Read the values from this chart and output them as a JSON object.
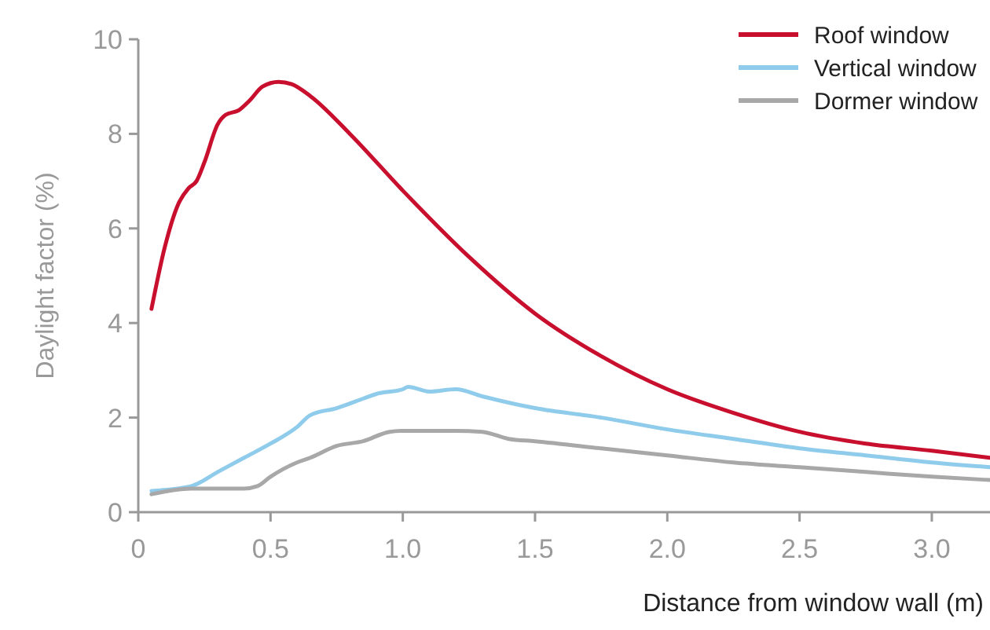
{
  "chart_data": {
    "type": "line",
    "xlabel": "Distance from window wall (m)",
    "ylabel": "Daylight factor (%)",
    "xlim": [
      0,
      3.22
    ],
    "ylim": [
      0,
      10
    ],
    "xticks": [
      0,
      0.5,
      {
        "value": 1,
        "label": "1.0"
      },
      1.5,
      {
        "value": 2,
        "label": "2.0"
      },
      2.5,
      {
        "value": 3,
        "label": "3.0"
      }
    ],
    "yticks": [
      0,
      2,
      4,
      6,
      8,
      10
    ],
    "grid": false,
    "legend": "top right",
    "marker": "none",
    "line_style": "solid",
    "series": [
      {
        "name": "Roof window",
        "color": "#c8102e",
        "x": [
          0.05,
          0.1,
          0.15,
          0.19,
          0.22,
          0.25,
          0.3,
          0.33,
          0.38,
          0.42,
          0.47,
          0.53,
          0.58,
          0.65,
          0.8,
          1.0,
          1.25,
          1.5,
          1.75,
          2.0,
          2.25,
          2.5,
          2.75,
          3.0,
          3.22
        ],
        "values": [
          4.3,
          5.6,
          6.5,
          6.85,
          7.0,
          7.4,
          8.2,
          8.4,
          8.5,
          8.7,
          9.0,
          9.1,
          9.05,
          8.8,
          8.0,
          6.8,
          5.4,
          4.2,
          3.3,
          2.6,
          2.1,
          1.7,
          1.45,
          1.3,
          1.15
        ]
      },
      {
        "name": "Vertical window",
        "color": "#8fcbeb",
        "x": [
          0.05,
          0.2,
          0.3,
          0.4,
          0.5,
          0.6,
          0.65,
          0.75,
          0.85,
          0.9,
          1.0,
          1.02,
          1.1,
          1.2,
          1.3,
          1.5,
          1.75,
          2.0,
          2.25,
          2.5,
          2.75,
          3.0,
          3.22
        ],
        "values": [
          0.45,
          0.55,
          0.85,
          1.15,
          1.45,
          1.8,
          2.05,
          2.2,
          2.4,
          2.5,
          2.6,
          2.65,
          2.55,
          2.6,
          2.45,
          2.2,
          2.0,
          1.75,
          1.55,
          1.35,
          1.2,
          1.05,
          0.95
        ]
      },
      {
        "name": "Dormer window",
        "color": "#a8a8a8",
        "x": [
          0.05,
          0.2,
          0.4,
          0.45,
          0.5,
          0.6,
          0.65,
          0.75,
          0.85,
          0.95,
          1.0,
          1.2,
          1.3,
          1.4,
          1.5,
          1.75,
          2.0,
          2.25,
          2.5,
          2.75,
          3.0,
          3.22
        ],
        "values": [
          0.38,
          0.5,
          0.5,
          0.55,
          0.75,
          1.05,
          1.15,
          1.4,
          1.5,
          1.7,
          1.72,
          1.72,
          1.7,
          1.55,
          1.5,
          1.35,
          1.2,
          1.05,
          0.95,
          0.85,
          0.75,
          0.68
        ]
      }
    ]
  }
}
